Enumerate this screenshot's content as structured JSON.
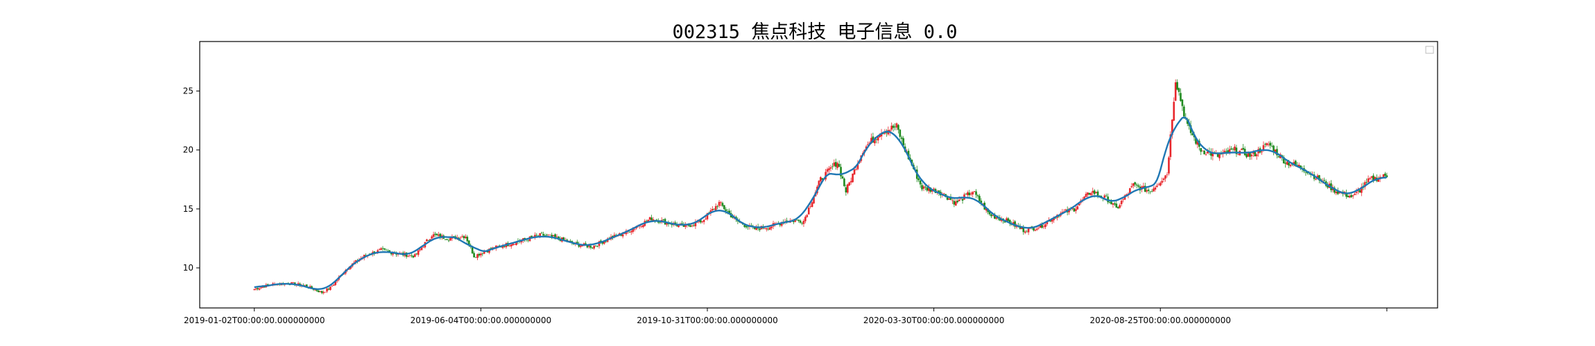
{
  "chart_data": {
    "type": "candlestick",
    "title": "002315 焦点科技 电子信息 0.0",
    "xlabel": "",
    "ylabel": "",
    "ylim": [
      6.6,
      29.2
    ],
    "grid": false,
    "legend": {
      "placement": "upper-right",
      "entries": []
    },
    "colors": {
      "up": "#e8262c",
      "down": "#1e8a1e",
      "ma": "#1f77b4",
      "axis": "#000000"
    },
    "yticks": [
      10,
      15,
      20,
      25
    ],
    "xtick_labels": [
      "2019-01-02T00:00:00.000000000",
      "2019-06-04T00:00:00.000000000",
      "2019-10-31T00:00:00.000000000",
      "2020-03-30T00:00:00.000000000",
      "2020-08-25T00:00:00.000000000",
      ""
    ],
    "xtick_index": [
      0,
      100,
      200,
      300,
      400,
      500
    ],
    "trading_days": 500,
    "price_path": [
      [
        0,
        8.2
      ],
      [
        10,
        8.6
      ],
      [
        20,
        8.7
      ],
      [
        30,
        8.5
      ],
      [
        40,
        7.9
      ],
      [
        45,
        8.3
      ],
      [
        55,
        10.0
      ],
      [
        65,
        11.0
      ],
      [
        75,
        11.5
      ],
      [
        85,
        11.2
      ],
      [
        95,
        11.0
      ],
      [
        105,
        12.8
      ],
      [
        115,
        12.5
      ],
      [
        125,
        12.7
      ],
      [
        130,
        11.0
      ],
      [
        140,
        11.6
      ],
      [
        150,
        12.0
      ],
      [
        160,
        12.4
      ],
      [
        170,
        12.8
      ],
      [
        180,
        12.5
      ],
      [
        190,
        12.0
      ],
      [
        200,
        11.8
      ],
      [
        210,
        12.5
      ],
      [
        220,
        13.0
      ],
      [
        225,
        13.4
      ],
      [
        235,
        14.2
      ],
      [
        245,
        13.8
      ],
      [
        255,
        13.5
      ],
      [
        265,
        14.0
      ],
      [
        275,
        15.5
      ],
      [
        285,
        14.0
      ],
      [
        295,
        13.3
      ],
      [
        305,
        13.5
      ],
      [
        315,
        14.0
      ],
      [
        325,
        14.0
      ],
      [
        335,
        17.5
      ],
      [
        345,
        19.0
      ],
      [
        350,
        16.5
      ],
      [
        360,
        20.0
      ],
      [
        370,
        21.5
      ],
      [
        380,
        22.0
      ],
      [
        385,
        20.0
      ],
      [
        395,
        16.8
      ],
      [
        405,
        16.5
      ],
      [
        415,
        15.5
      ],
      [
        425,
        16.5
      ],
      [
        435,
        14.5
      ],
      [
        445,
        14.0
      ],
      [
        455,
        13.2
      ],
      [
        465,
        13.5
      ],
      [
        475,
        14.5
      ],
      [
        485,
        15.0
      ],
      [
        495,
        16.5
      ],
      [
        505,
        15.8
      ],
      [
        510,
        15.0
      ],
      [
        520,
        17.0
      ],
      [
        530,
        16.5
      ],
      [
        540,
        18.0
      ],
      [
        545,
        26.0
      ],
      [
        552,
        22.0
      ],
      [
        560,
        20.0
      ],
      [
        570,
        19.5
      ],
      [
        580,
        20.0
      ],
      [
        590,
        19.5
      ],
      [
        600,
        20.5
      ],
      [
        610,
        19.0
      ],
      [
        620,
        18.5
      ],
      [
        630,
        17.5
      ],
      [
        640,
        16.5
      ],
      [
        650,
        16.0
      ],
      [
        660,
        17.5
      ],
      [
        670,
        17.8
      ]
    ]
  }
}
